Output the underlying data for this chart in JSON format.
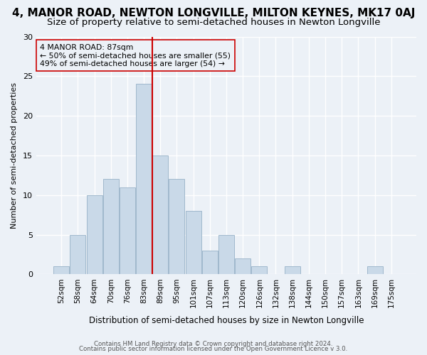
{
  "title": "4, MANOR ROAD, NEWTON LONGVILLE, MILTON KEYNES, MK17 0AJ",
  "subtitle": "Size of property relative to semi-detached houses in Newton Longville",
  "xlabel": "Distribution of semi-detached houses by size in Newton Longville",
  "ylabel": "Number of semi-detached properties",
  "bin_labels": [
    "52sqm",
    "58sqm",
    "64sqm",
    "70sqm",
    "76sqm",
    "83sqm",
    "89sqm",
    "95sqm",
    "101sqm",
    "107sqm",
    "113sqm",
    "120sqm",
    "126sqm",
    "132sqm",
    "138sqm",
    "144sqm",
    "150sqm",
    "157sqm",
    "163sqm",
    "169sqm",
    "175sqm"
  ],
  "bar_values": [
    1,
    5,
    10,
    12,
    11,
    24,
    15,
    12,
    8,
    3,
    5,
    2,
    1,
    0,
    1,
    0,
    0,
    0,
    0,
    1,
    0
  ],
  "bar_color": "#c9d9e8",
  "bar_edgecolor": "#a0b8cc",
  "vline_x_index": 6,
  "vline_color": "#cc0000",
  "annotation_title": "4 MANOR ROAD: 87sqm",
  "annotation_line1": "← 50% of semi-detached houses are smaller (55)",
  "annotation_line2": "49% of semi-detached houses are larger (54) →",
  "annotation_box_edgecolor": "#cc0000",
  "footer1": "Contains HM Land Registry data © Crown copyright and database right 2024.",
  "footer2": "Contains public sector information licensed under the Open Government Licence v 3.0.",
  "ylim": [
    0,
    30
  ],
  "yticks": [
    0,
    5,
    10,
    15,
    20,
    25,
    30
  ],
  "background_color": "#ecf1f7",
  "grid_color": "#ffffff",
  "title_fontsize": 11,
  "subtitle_fontsize": 9.5
}
